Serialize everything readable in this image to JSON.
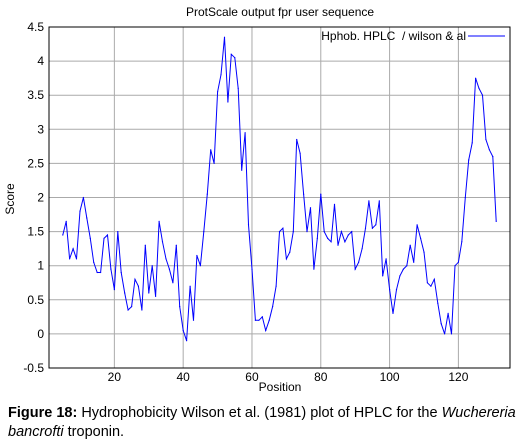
{
  "chart_data": {
    "type": "line",
    "title": "ProtScale output fpr user sequence",
    "xlabel": "Position",
    "ylabel": "Score",
    "xlim": [
      1,
      135
    ],
    "ylim": [
      -0.5,
      4.5
    ],
    "xticks": [
      20,
      40,
      60,
      80,
      100,
      120
    ],
    "yticks": [
      -0.5,
      0,
      0.5,
      1,
      1.5,
      2,
      2.5,
      3,
      3.5,
      4,
      4.5
    ],
    "grid": true,
    "legend_position": "top-right",
    "series": [
      {
        "name": "Hphob. HPLC  / wilson & al",
        "color": "#0000ff",
        "points": [
          [
            5,
            1.45
          ],
          [
            6,
            1.65
          ],
          [
            7,
            1.1
          ],
          [
            8,
            1.25
          ],
          [
            9,
            1.1
          ],
          [
            10,
            1.8
          ],
          [
            11,
            2.0
          ],
          [
            12,
            1.7
          ],
          [
            13,
            1.4
          ],
          [
            14,
            1.05
          ],
          [
            15,
            0.9
          ],
          [
            16,
            0.9
          ],
          [
            17,
            1.4
          ],
          [
            18,
            1.45
          ],
          [
            19,
            0.95
          ],
          [
            20,
            0.65
          ],
          [
            21,
            1.5
          ],
          [
            22,
            0.9
          ],
          [
            23,
            0.6
          ],
          [
            24,
            0.35
          ],
          [
            25,
            0.4
          ],
          [
            26,
            0.8
          ],
          [
            27,
            0.7
          ],
          [
            28,
            0.35
          ],
          [
            29,
            1.3
          ],
          [
            30,
            0.6
          ],
          [
            31,
            1.0
          ],
          [
            32,
            0.55
          ],
          [
            33,
            1.65
          ],
          [
            34,
            1.35
          ],
          [
            35,
            1.1
          ],
          [
            36,
            0.95
          ],
          [
            37,
            0.75
          ],
          [
            38,
            1.3
          ],
          [
            39,
            0.4
          ],
          [
            40,
            0.05
          ],
          [
            41,
            -0.1
          ],
          [
            42,
            0.7
          ],
          [
            43,
            0.2
          ],
          [
            44,
            1.15
          ],
          [
            45,
            1.0
          ],
          [
            46,
            1.5
          ],
          [
            47,
            2.05
          ],
          [
            48,
            2.7
          ],
          [
            49,
            2.5
          ],
          [
            50,
            3.55
          ],
          [
            51,
            3.8
          ],
          [
            52,
            4.35
          ],
          [
            53,
            3.4
          ],
          [
            54,
            4.1
          ],
          [
            55,
            4.05
          ],
          [
            56,
            3.6
          ],
          [
            57,
            2.4
          ],
          [
            58,
            2.95
          ],
          [
            59,
            1.6
          ],
          [
            60,
            0.95
          ],
          [
            61,
            0.2
          ],
          [
            62,
            0.2
          ],
          [
            63,
            0.25
          ],
          [
            64,
            0.05
          ],
          [
            65,
            0.2
          ],
          [
            66,
            0.4
          ],
          [
            67,
            0.7
          ],
          [
            68,
            1.5
          ],
          [
            69,
            1.55
          ],
          [
            70,
            1.1
          ],
          [
            71,
            1.2
          ],
          [
            72,
            1.5
          ],
          [
            73,
            2.85
          ],
          [
            74,
            2.65
          ],
          [
            75,
            2.05
          ],
          [
            76,
            1.5
          ],
          [
            77,
            1.85
          ],
          [
            78,
            0.95
          ],
          [
            79,
            1.4
          ],
          [
            80,
            2.05
          ],
          [
            81,
            1.5
          ],
          [
            82,
            1.4
          ],
          [
            83,
            1.35
          ],
          [
            84,
            1.9
          ],
          [
            85,
            1.3
          ],
          [
            86,
            1.5
          ],
          [
            87,
            1.35
          ],
          [
            88,
            1.45
          ],
          [
            89,
            1.5
          ],
          [
            90,
            0.95
          ],
          [
            91,
            1.05
          ],
          [
            92,
            1.25
          ],
          [
            93,
            1.55
          ],
          [
            94,
            1.95
          ],
          [
            95,
            1.55
          ],
          [
            96,
            1.6
          ],
          [
            97,
            1.95
          ],
          [
            98,
            0.85
          ],
          [
            99,
            1.1
          ],
          [
            100,
            0.65
          ],
          [
            101,
            0.3
          ],
          [
            102,
            0.65
          ],
          [
            103,
            0.85
          ],
          [
            104,
            0.95
          ],
          [
            105,
            1.0
          ],
          [
            106,
            1.3
          ],
          [
            107,
            1.05
          ],
          [
            108,
            1.6
          ],
          [
            109,
            1.4
          ],
          [
            110,
            1.2
          ],
          [
            111,
            0.75
          ],
          [
            112,
            0.7
          ],
          [
            113,
            0.8
          ],
          [
            114,
            0.45
          ],
          [
            115,
            0.15
          ],
          [
            116,
            0.0
          ],
          [
            117,
            0.3
          ],
          [
            118,
            0.0
          ],
          [
            119,
            1.0
          ],
          [
            120,
            1.05
          ],
          [
            121,
            1.35
          ],
          [
            122,
            2.0
          ],
          [
            123,
            2.55
          ],
          [
            124,
            2.8
          ],
          [
            125,
            3.75
          ],
          [
            126,
            3.6
          ],
          [
            127,
            3.5
          ],
          [
            128,
            2.85
          ],
          [
            129,
            2.7
          ],
          [
            130,
            2.6
          ],
          [
            131,
            1.65
          ]
        ]
      }
    ]
  },
  "caption": {
    "label": "Figure 18:",
    "text_before": " Hydrophobicity Wilson et al. (1981) plot of HPLC for the ",
    "italic": "Wuchereria bancrofti",
    "text_after": " troponin."
  }
}
